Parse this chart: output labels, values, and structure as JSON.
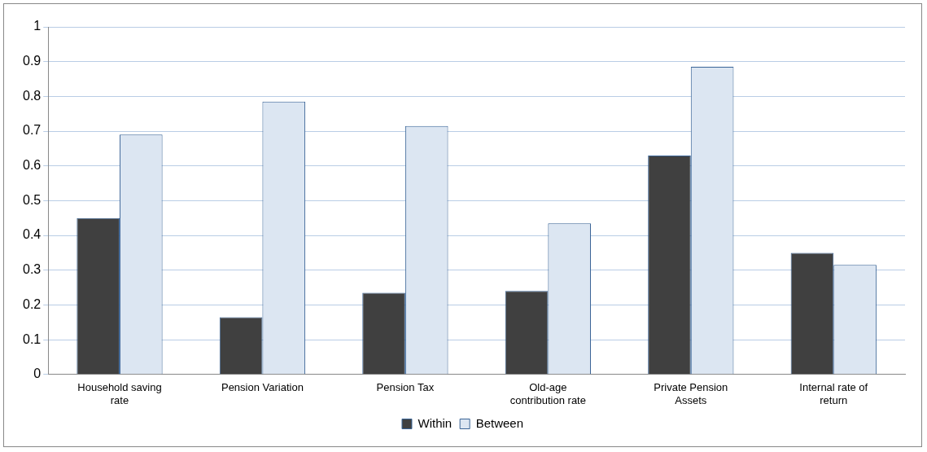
{
  "chart_data": {
    "type": "bar",
    "categories": [
      "Household saving rate",
      "Pension Variation",
      "Pension Tax",
      "Old-age contribution rate",
      "Private Pension Assets",
      "Internal rate of return"
    ],
    "series": [
      {
        "name": "Within",
        "color": "#404040",
        "values": [
          0.45,
          0.165,
          0.235,
          0.24,
          0.63,
          0.35
        ]
      },
      {
        "name": "Between",
        "color": "#dce6f2",
        "values": [
          0.69,
          0.785,
          0.715,
          0.435,
          0.885,
          0.315
        ]
      }
    ],
    "ylim": [
      0,
      1
    ],
    "yticks": [
      0,
      0.1,
      0.2,
      0.3,
      0.4,
      0.5,
      0.6,
      0.7,
      0.8,
      0.9,
      1
    ],
    "grid": "y",
    "legend": "bottom"
  }
}
